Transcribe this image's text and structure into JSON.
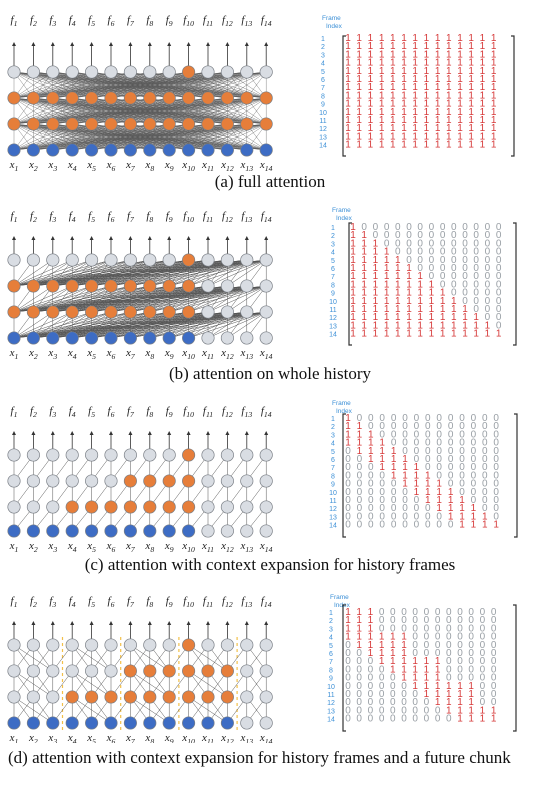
{
  "frame_index_label": [
    "Frame",
    "Index"
  ],
  "frames": [
    "1",
    "2",
    "3",
    "4",
    "5",
    "6",
    "7",
    "8",
    "9",
    "10",
    "11",
    "12",
    "13",
    "14"
  ],
  "top_labels": [
    "f1",
    "f2",
    "f3",
    "f4",
    "f5",
    "f6",
    "f7",
    "f8",
    "f9",
    "f10",
    "f11",
    "f12",
    "f13",
    "f14"
  ],
  "bottom_labels": [
    "x1",
    "x2",
    "x3",
    "x4",
    "x5",
    "x6",
    "x7",
    "x8",
    "x9",
    "x10",
    "x11",
    "x12",
    "x13",
    "x14"
  ],
  "colors": {
    "gray_node": "#d9dde3",
    "orange_node": "#e67e3a",
    "blue_node": "#3d6cc4",
    "one": "#d63a3a",
    "zero": "#9aa0a6",
    "index": "#3b8fd6",
    "dash": "#f2c04a"
  },
  "panels": [
    {
      "id": "a",
      "caption": "(a) full attention",
      "type": "full",
      "orange": [
        [
          0,
          1,
          2,
          3,
          4,
          5,
          6,
          7,
          8,
          9,
          10,
          11,
          12,
          13
        ],
        [
          0,
          1,
          2,
          3,
          4,
          5,
          6,
          7,
          8,
          9,
          10,
          11,
          12,
          13
        ],
        [
          9
        ]
      ],
      "blue": [
        0,
        1,
        2,
        3,
        4,
        5,
        6,
        7,
        8,
        9,
        10,
        11,
        12,
        13
      ]
    },
    {
      "id": "b",
      "caption": "(b) attention on whole history",
      "type": "history",
      "orange": [
        [
          0,
          1,
          2,
          3,
          4,
          5,
          6,
          7,
          8,
          9
        ],
        [
          0,
          1,
          2,
          3,
          4,
          5,
          6,
          7,
          8,
          9
        ],
        [
          9
        ]
      ],
      "blue": [
        0,
        1,
        2,
        3,
        4,
        5,
        6,
        7,
        8,
        9
      ]
    },
    {
      "id": "c",
      "caption": "(c) attention with context expansion for history frames",
      "type": "context",
      "orange": [
        [
          3,
          4,
          5,
          6,
          7,
          8,
          9
        ],
        [
          6,
          7,
          8,
          9
        ],
        [
          9
        ]
      ],
      "blue": [
        0,
        1,
        2,
        3,
        4,
        5,
        6,
        7,
        8,
        9
      ]
    },
    {
      "id": "d",
      "caption": "(d) attention with context expansion for history frames and a future chunk",
      "type": "chunk",
      "orange": [
        [
          3,
          4,
          5,
          6,
          7,
          8,
          9,
          10,
          11
        ],
        [
          6,
          7,
          8,
          9,
          10,
          11
        ],
        [
          9
        ]
      ],
      "blue": [
        0,
        1,
        2,
        3,
        4,
        5,
        6,
        7,
        8,
        9,
        10,
        11
      ]
    }
  ]
}
